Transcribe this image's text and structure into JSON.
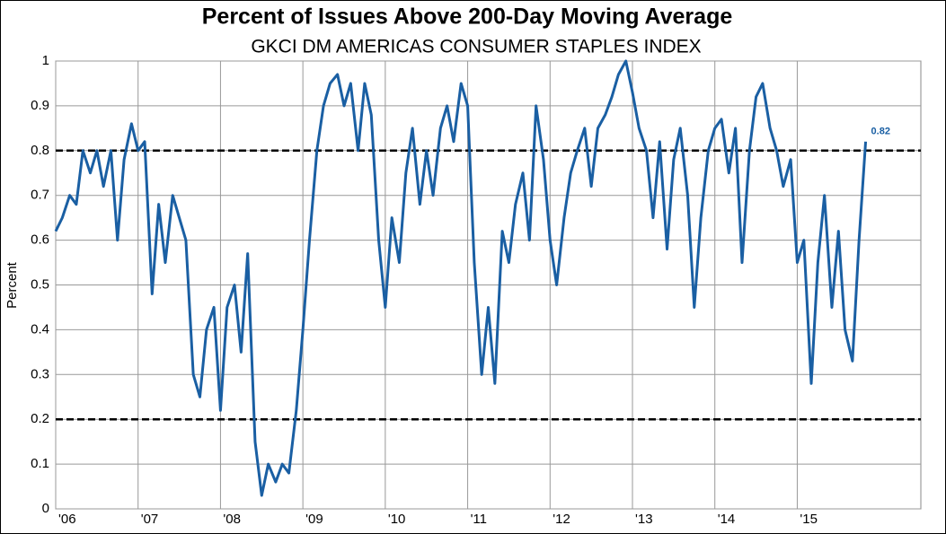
{
  "chart_data": {
    "type": "line",
    "title": "Percent of Issues Above 200-Day Moving Average",
    "subtitle": "GKCI DM AMERICAS CONSUMER STAPLES INDEX",
    "y_label": "Percent",
    "color": "#1a5fa3",
    "grid": true,
    "xlim": [
      2006,
      2016.5
    ],
    "ylim": [
      0,
      1
    ],
    "yticks": [
      0,
      0.1,
      0.2,
      0.3,
      0.4,
      0.5,
      0.6,
      0.7,
      0.8,
      0.9,
      1
    ],
    "xticks": [
      {
        "value": 2006,
        "label": "'06"
      },
      {
        "value": 2007,
        "label": "'07"
      },
      {
        "value": 2008,
        "label": "'08"
      },
      {
        "value": 2009,
        "label": "'09"
      },
      {
        "value": 2010,
        "label": "'10"
      },
      {
        "value": 2011,
        "label": "'11"
      },
      {
        "value": 2012,
        "label": "'12"
      },
      {
        "value": 2013,
        "label": "'13"
      },
      {
        "value": 2014,
        "label": "'14"
      },
      {
        "value": 2015,
        "label": "'15"
      }
    ],
    "reference_lines": [
      0.2,
      0.8
    ],
    "end_label": 0.82,
    "x": [
      2006.0,
      2006.08,
      2006.17,
      2006.25,
      2006.33,
      2006.42,
      2006.5,
      2006.58,
      2006.67,
      2006.75,
      2006.83,
      2006.92,
      2007.0,
      2007.08,
      2007.17,
      2007.25,
      2007.33,
      2007.42,
      2007.5,
      2007.58,
      2007.67,
      2007.75,
      2007.83,
      2007.92,
      2008.0,
      2008.08,
      2008.17,
      2008.25,
      2008.33,
      2008.42,
      2008.5,
      2008.58,
      2008.67,
      2008.75,
      2008.83,
      2008.92,
      2009.0,
      2009.08,
      2009.17,
      2009.25,
      2009.33,
      2009.42,
      2009.5,
      2009.58,
      2009.67,
      2009.75,
      2009.83,
      2009.92,
      2010.0,
      2010.08,
      2010.17,
      2010.25,
      2010.33,
      2010.42,
      2010.5,
      2010.58,
      2010.67,
      2010.75,
      2010.83,
      2010.92,
      2011.0,
      2011.08,
      2011.17,
      2011.25,
      2011.33,
      2011.42,
      2011.5,
      2011.58,
      2011.67,
      2011.75,
      2011.83,
      2011.92,
      2012.0,
      2012.08,
      2012.17,
      2012.25,
      2012.33,
      2012.42,
      2012.5,
      2012.58,
      2012.67,
      2012.75,
      2012.83,
      2012.92,
      2013.0,
      2013.08,
      2013.17,
      2013.25,
      2013.33,
      2013.42,
      2013.5,
      2013.58,
      2013.67,
      2013.75,
      2013.83,
      2013.92,
      2014.0,
      2014.08,
      2014.17,
      2014.25,
      2014.33,
      2014.42,
      2014.5,
      2014.58,
      2014.67,
      2014.75,
      2014.83,
      2014.92,
      2015.0,
      2015.08,
      2015.17,
      2015.25,
      2015.33,
      2015.42,
      2015.5,
      2015.58,
      2015.67,
      2015.75,
      2015.83
    ],
    "values": [
      0.62,
      0.65,
      0.7,
      0.68,
      0.8,
      0.75,
      0.8,
      0.72,
      0.8,
      0.6,
      0.78,
      0.86,
      0.8,
      0.82,
      0.48,
      0.68,
      0.55,
      0.7,
      0.65,
      0.6,
      0.3,
      0.25,
      0.4,
      0.45,
      0.22,
      0.45,
      0.5,
      0.35,
      0.57,
      0.15,
      0.03,
      0.1,
      0.06,
      0.1,
      0.08,
      0.22,
      0.4,
      0.6,
      0.8,
      0.9,
      0.95,
      0.97,
      0.9,
      0.95,
      0.8,
      0.95,
      0.88,
      0.6,
      0.45,
      0.65,
      0.55,
      0.75,
      0.85,
      0.68,
      0.8,
      0.7,
      0.85,
      0.9,
      0.82,
      0.95,
      0.9,
      0.55,
      0.3,
      0.45,
      0.28,
      0.62,
      0.55,
      0.68,
      0.75,
      0.6,
      0.9,
      0.78,
      0.6,
      0.5,
      0.65,
      0.75,
      0.8,
      0.85,
      0.72,
      0.85,
      0.88,
      0.92,
      0.97,
      1.0,
      0.93,
      0.85,
      0.8,
      0.65,
      0.82,
      0.58,
      0.78,
      0.85,
      0.7,
      0.45,
      0.65,
      0.8,
      0.85,
      0.87,
      0.75,
      0.85,
      0.55,
      0.8,
      0.92,
      0.95,
      0.85,
      0.8,
      0.72,
      0.78,
      0.55,
      0.6,
      0.28,
      0.55,
      0.7,
      0.45,
      0.62,
      0.4,
      0.33,
      0.6,
      0.82
    ]
  }
}
